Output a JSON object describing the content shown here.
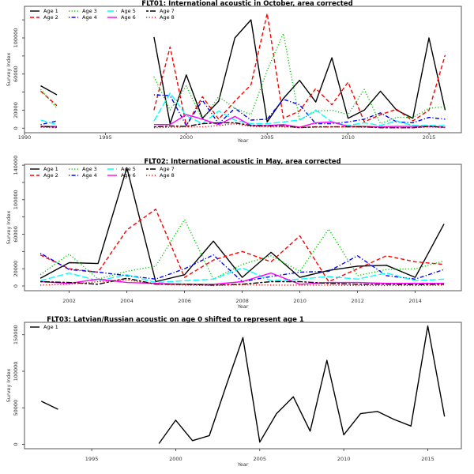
{
  "chart_data": [
    {
      "type": "line",
      "title": "FLT01:       International acoustic in October, area corrected",
      "xlabel": "Year",
      "ylabel": "Survey Index",
      "xlim": [
        1990,
        2017
      ],
      "ylim": [
        -5000,
        135000
      ],
      "xticks": [
        1990,
        1995,
        2000,
        2005,
        2010,
        2015
      ],
      "yticks": [
        0,
        20000,
        40000,
        60000,
        80000,
        100000,
        120000
      ],
      "ytick_labels": [
        "0",
        "20000",
        "",
        "60000",
        "",
        "100000",
        ""
      ],
      "legend": "top-left",
      "segments": [
        [
          1991,
          1992
        ],
        [
          1998,
          2016
        ]
      ],
      "x": [
        1991,
        1992,
        1998,
        1999,
        2000,
        2001,
        2002,
        2003,
        2004,
        2005,
        2006,
        2007,
        2008,
        2009,
        2010,
        2011,
        2012,
        2013,
        2014,
        2015,
        2016
      ],
      "series": [
        {
          "name": "Age 1",
          "color": "#000000",
          "dash": "solid",
          "values": [
            47000,
            37000,
            101000,
            5000,
            59000,
            11000,
            30000,
            100000,
            120000,
            7000,
            33000,
            53000,
            29000,
            78000,
            11000,
            20000,
            41000,
            20000,
            11000,
            100000,
            20000
          ]
        },
        {
          "name": "Age 2",
          "color": "#ff0000",
          "dash": "dashed",
          "values": [
            41000,
            25000,
            20000,
            90000,
            3000,
            35000,
            10000,
            30000,
            48000,
            127000,
            11000,
            19000,
            44000,
            26000,
            51000,
            7000,
            15000,
            21000,
            8000,
            20000,
            81000
          ]
        },
        {
          "name": "Age 3",
          "color": "#00cd00",
          "dash": "dotted",
          "values": [
            43000,
            22000,
            57000,
            20000,
            47000,
            9000,
            35000,
            22000,
            15000,
            64000,
            105000,
            9000,
            19000,
            20000,
            15000,
            43000,
            5000,
            12000,
            12000,
            22000,
            24000
          ]
        },
        {
          "name": "Age 4",
          "color": "#0000ff",
          "dash": "dotdash",
          "values": [
            4000,
            8000,
            37000,
            36000,
            3000,
            31000,
            5000,
            22000,
            9000,
            10000,
            32000,
            26000,
            5000,
            5000,
            7000,
            10000,
            17000,
            7000,
            6000,
            12000,
            10000
          ]
        },
        {
          "name": "Age 5",
          "color": "#00ffff",
          "dash": "longdash",
          "values": [
            9000,
            4000,
            8000,
            39000,
            14000,
            5000,
            19000,
            9000,
            5000,
            5000,
            7000,
            9000,
            20000,
            7000,
            3000,
            6000,
            3000,
            8000,
            3000,
            3000,
            3000
          ]
        },
        {
          "name": "Age 6",
          "color": "#ff00ff",
          "dash": "solid",
          "values": [
            2000,
            2000,
            4000,
            4000,
            15000,
            10000,
            4000,
            13000,
            3000,
            3000,
            4000,
            1000,
            6000,
            7000,
            2000,
            2000,
            1500,
            2000,
            2000,
            2000,
            1000
          ]
        },
        {
          "name": "Age 7",
          "color": "#000000",
          "dash": "twodash",
          "values": [
            2000,
            1000,
            1500,
            2500,
            2000,
            5000,
            6000,
            6000,
            3000,
            2500,
            2500,
            500,
            1500,
            1500,
            1500,
            1500,
            500,
            500,
            500,
            2000,
            1000
          ]
        },
        {
          "name": "Age 8",
          "color": "#ff0000",
          "dash": "dotted",
          "values": [
            1000,
            500,
            500,
            1000,
            1500,
            1500,
            3000,
            5000,
            2000,
            1500,
            1500,
            1000,
            1000,
            1500,
            1500,
            1000,
            1000,
            500,
            500,
            1500,
            500
          ]
        }
      ]
    },
    {
      "type": "line",
      "title": "FLT02: International acoustic in May, area corrected",
      "xlabel": "Year",
      "ylabel": "Survey Index",
      "xlim": [
        2000.45,
        2015.6
      ],
      "ylim": [
        -5500,
        141000
      ],
      "xticks": [
        2002,
        2004,
        2006,
        2008,
        2010,
        2012,
        2014
      ],
      "yticks": [
        0,
        20000,
        40000,
        60000,
        80000,
        100000,
        120000,
        140000
      ],
      "ytick_labels": [
        "0",
        "20000",
        "",
        "60000",
        "",
        "100000",
        "",
        "140000"
      ],
      "legend": "top-left",
      "segments": [
        [
          2001,
          2015
        ]
      ],
      "x": [
        2001,
        2002,
        2003,
        2004,
        2005,
        2006,
        2007,
        2008,
        2009,
        2010,
        2011,
        2012,
        2013,
        2014,
        2015
      ],
      "series": [
        {
          "name": "Age 1",
          "color": "#000000",
          "dash": "solid",
          "values": [
            9000,
            27000,
            26000,
            137000,
            5000,
            13000,
            52000,
            10000,
            39000,
            10000,
            18000,
            23000,
            24000,
            10000,
            72000
          ]
        },
        {
          "name": "Age 2",
          "color": "#ff0000",
          "dash": "dashed",
          "values": [
            36000,
            20000,
            16000,
            65000,
            89000,
            10000,
            30000,
            40000,
            28000,
            58000,
            5000,
            20000,
            35000,
            28000,
            25000
          ]
        },
        {
          "name": "Age 3",
          "color": "#00cd00",
          "dash": "dotted",
          "values": [
            13000,
            37000,
            8000,
            17000,
            23000,
            77000,
            8000,
            25000,
            35000,
            17000,
            66000,
            12000,
            19000,
            20000,
            29000
          ]
        },
        {
          "name": "Age 4",
          "color": "#0000ff",
          "dash": "dotdash",
          "values": [
            38000,
            19000,
            16000,
            12000,
            8000,
            20000,
            36000,
            5000,
            11000,
            16000,
            17000,
            35000,
            12000,
            8000,
            19000
          ]
        },
        {
          "name": "Age 5",
          "color": "#00ffff",
          "dash": "longdash",
          "values": [
            6000,
            15000,
            6000,
            13000,
            4000,
            6000,
            8000,
            21000,
            6000,
            8000,
            11000,
            8000,
            15000,
            6000,
            8000
          ]
        },
        {
          "name": "Age 6",
          "color": "#ff00ff",
          "dash": "solid",
          "values": [
            5000,
            3000,
            8000,
            4000,
            3000,
            2000,
            2000,
            5000,
            15000,
            2000,
            4000,
            4000,
            3000,
            3000,
            3000
          ]
        },
        {
          "name": "Age 7",
          "color": "#000000",
          "dash": "twodash",
          "values": [
            5000,
            4000,
            2000,
            9000,
            2000,
            2000,
            1000,
            2000,
            5000,
            5000,
            3000,
            2000,
            2000,
            1500,
            2000
          ]
        },
        {
          "name": "Age 8",
          "color": "#ff0000",
          "dash": "dotted",
          "values": [
            1000,
            2000,
            5000,
            7000,
            2000,
            1000,
            500,
            1500,
            1000,
            1000,
            1000,
            500,
            500,
            500,
            1000
          ]
        }
      ]
    },
    {
      "type": "line",
      "title": "FLT03: Latvian/Russian acoustic on age 0 shifted to represent age 1",
      "xlabel": "Year",
      "ylabel": "Survey Index",
      "xlim": [
        1991,
        2017
      ],
      "ylim": [
        -6000,
        167000
      ],
      "xticks": [
        1995,
        2000,
        2005,
        2010,
        2015
      ],
      "yticks": [
        0,
        50000,
        100000,
        150000
      ],
      "ytick_labels": [
        "0",
        "50000",
        "100000",
        "150000"
      ],
      "legend": "top-left",
      "segments": [
        [
          1992,
          1993
        ],
        [
          1999,
          2016
        ]
      ],
      "x": [
        1992,
        1993,
        1999,
        2000,
        2001,
        2002,
        2003,
        2004,
        2005,
        2006,
        2007,
        2008,
        2009,
        2010,
        2011,
        2012,
        2013,
        2014,
        2015,
        2016
      ],
      "series": [
        {
          "name": "Age 1",
          "color": "#000000",
          "dash": "solid",
          "values": [
            59000,
            48000,
            1000,
            33000,
            5000,
            12000,
            80000,
            146000,
            3000,
            42000,
            65000,
            18000,
            115000,
            13000,
            42000,
            45000,
            34000,
            25000,
            162000,
            38000
          ]
        }
      ]
    }
  ]
}
